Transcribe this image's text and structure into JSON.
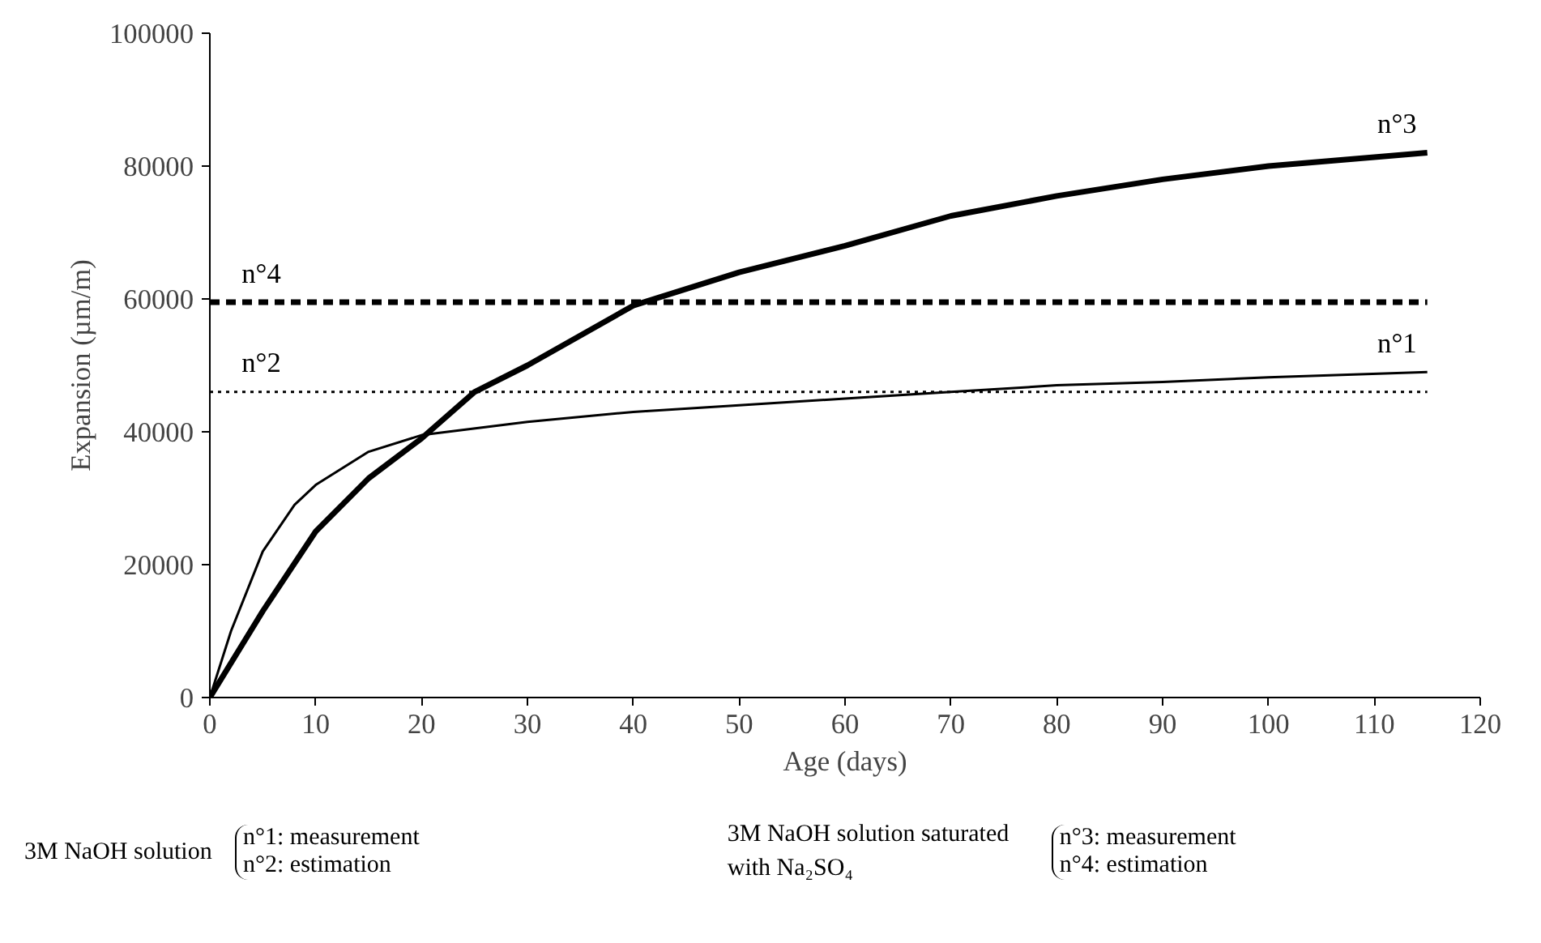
{
  "chart_data": {
    "type": "line",
    "xlabel": "Age (days)",
    "ylabel": "Expansion (µm/m)",
    "xlim": [
      0,
      120
    ],
    "xticks": [
      0,
      10,
      20,
      30,
      40,
      50,
      60,
      70,
      80,
      90,
      100,
      110,
      120
    ],
    "ylim": [
      0,
      100000
    ],
    "yticks": [
      0,
      20000,
      40000,
      60000,
      80000,
      100000
    ],
    "grid": false,
    "marker": "none",
    "series": [
      {
        "name": "n°1",
        "color": "#000000",
        "line_style": "solid",
        "x": [
          0,
          2,
          5,
          8,
          10,
          15,
          20,
          30,
          40,
          50,
          60,
          70,
          80,
          90,
          100,
          115
        ],
        "values": [
          0,
          10000,
          22000,
          29000,
          32000,
          37000,
          39500,
          41500,
          43000,
          44000,
          45000,
          46000,
          47000,
          47500,
          48200,
          49000
        ]
      },
      {
        "name": "n°2",
        "color": "#000000",
        "line_style": "dotted",
        "x": [
          0,
          115
        ],
        "values": [
          46000,
          46000
        ]
      },
      {
        "name": "n°3",
        "color": "#000000",
        "line_style": "solid",
        "x": [
          0,
          5,
          10,
          15,
          20,
          25,
          30,
          40,
          50,
          60,
          70,
          80,
          90,
          100,
          115
        ],
        "values": [
          0,
          13000,
          25000,
          33000,
          39000,
          46000,
          50000,
          59000,
          64000,
          68000,
          72500,
          75500,
          78000,
          80000,
          82000
        ]
      },
      {
        "name": "n°4",
        "color": "#000000",
        "line_style": "dashed",
        "x": [
          0,
          115
        ],
        "values": [
          59500,
          59500
        ]
      }
    ],
    "annotations": [
      "3M NaOH solution",
      "n°1: measurement",
      "n°2: estimation",
      "3M NaOH solution saturated with Na₂SO₄",
      "n°3: measurement",
      "n°4: estimation"
    ]
  }
}
